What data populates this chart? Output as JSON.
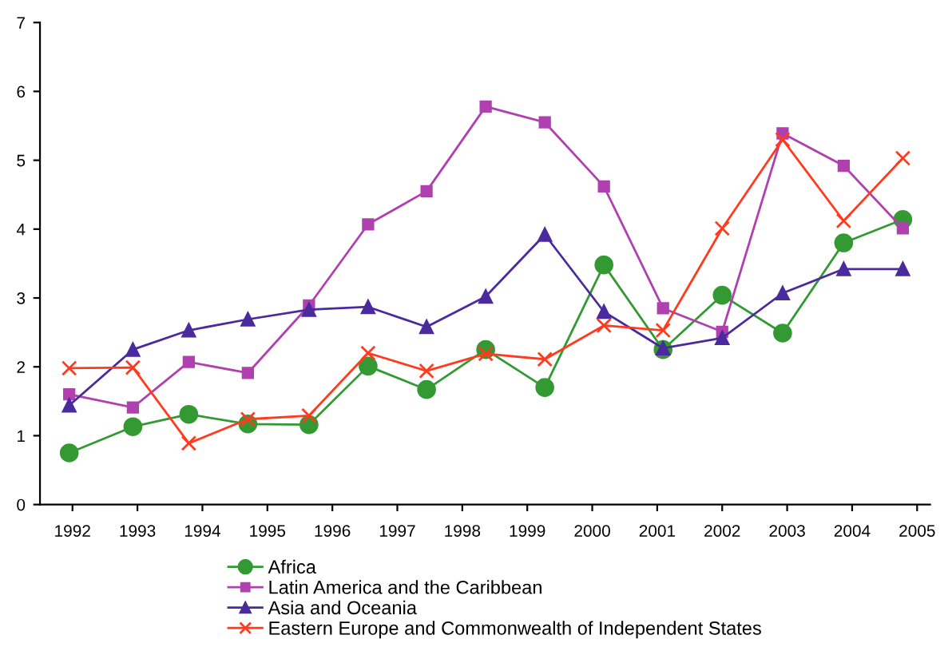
{
  "chart_data": {
    "type": "line",
    "x": [
      1991.95,
      1992.93,
      1993.79,
      1994.7,
      1995.64,
      1996.55,
      1997.45,
      1998.36,
      1999.27,
      2000.18,
      2001.09,
      2002.0,
      2002.93,
      2003.87,
      2004.78
    ],
    "series": [
      {
        "name": "Africa",
        "color": "#339933",
        "marker": "circle",
        "values": [
          0.75,
          1.13,
          1.31,
          1.17,
          1.16,
          2.01,
          1.67,
          2.25,
          1.7,
          3.48,
          2.25,
          3.04,
          2.49,
          3.8,
          4.14
        ]
      },
      {
        "name": "Latin America and the Caribbean",
        "color": "#b040b0",
        "marker": "square",
        "values": [
          1.6,
          1.41,
          2.07,
          1.91,
          2.89,
          4.07,
          4.55,
          5.78,
          5.55,
          4.62,
          2.85,
          2.51,
          5.39,
          4.92,
          4.01
        ]
      },
      {
        "name": "Asia and Oceania",
        "color": "#4b2a9e",
        "marker": "triangle",
        "values": [
          1.44,
          2.25,
          2.53,
          2.69,
          2.83,
          2.87,
          2.58,
          3.02,
          3.92,
          2.8,
          2.27,
          2.42,
          3.07,
          3.42,
          3.42
        ]
      },
      {
        "name": "Eastern Europe and Commonwealth of Independent States",
        "color": "#ff3b1f",
        "marker": "cross",
        "values": [
          1.98,
          1.99,
          0.89,
          1.24,
          1.29,
          2.2,
          1.94,
          2.19,
          2.11,
          2.6,
          2.53,
          4.01,
          5.3,
          4.12,
          5.03
        ]
      }
    ],
    "xlim": [
      1991.5,
      2005.2
    ],
    "xticks": [
      1992,
      1993,
      1994,
      1995,
      1996,
      1997,
      1998,
      1999,
      2000,
      2001,
      2002,
      2003,
      2004,
      2005
    ],
    "ylim": [
      0,
      7
    ],
    "yticks": [
      0,
      1,
      2,
      3,
      4,
      5,
      6,
      7
    ],
    "grid": false,
    "legend": "bottom",
    "line_style": "solid"
  }
}
